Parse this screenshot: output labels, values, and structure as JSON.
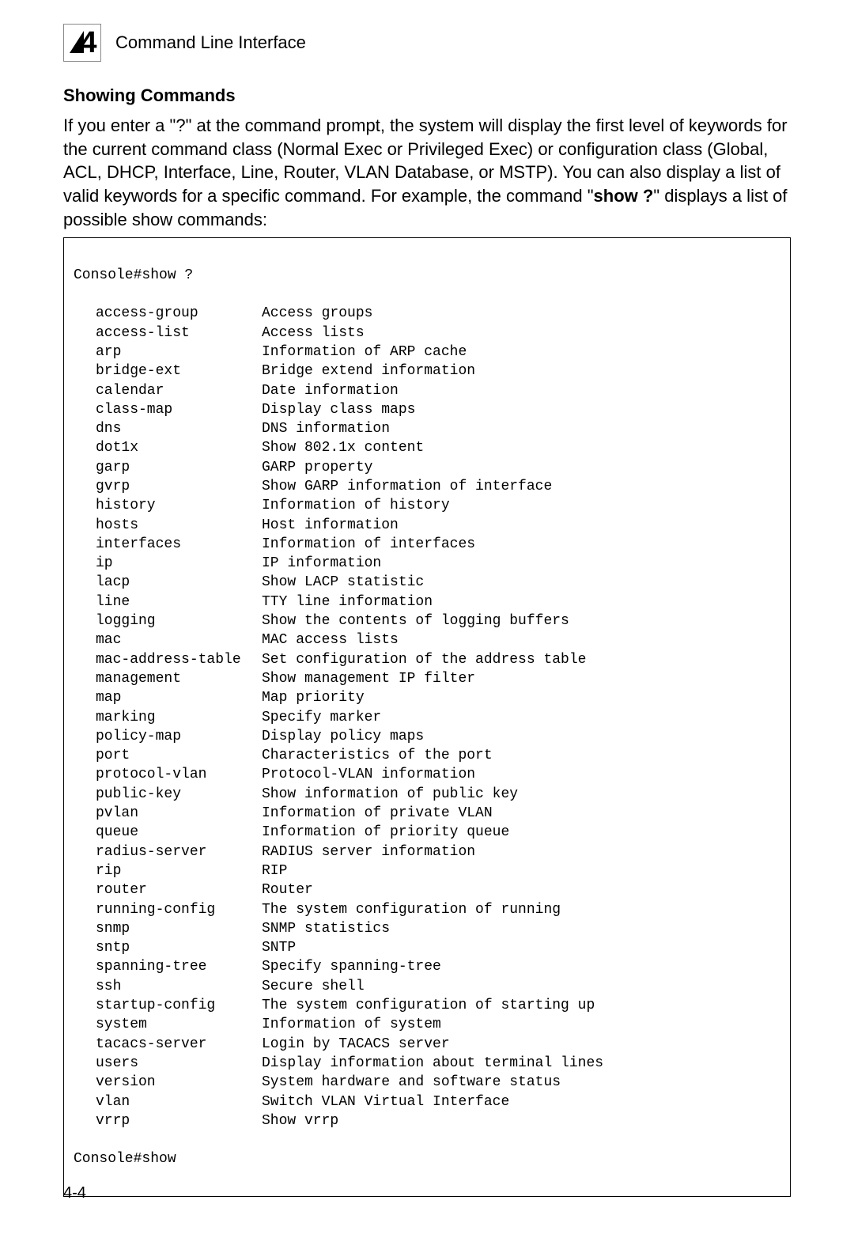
{
  "header": {
    "chapter_number": "4",
    "title": "Command Line Interface"
  },
  "section": {
    "heading": "Showing Commands",
    "paragraph_parts": {
      "p1": "If you enter a \"?\" at the command prompt, the system will display the first level of keywords for the current command class (Normal Exec or Privileged Exec) or configuration class (Global, ACL, DHCP, Interface, Line, Router, VLAN Database, or MSTP). You can also display a list of valid keywords for a specific command. For example, the command \"",
      "p1_bold": "show ?",
      "p1_tail": "\" displays a list of possible show commands:"
    }
  },
  "terminal": {
    "prompt_first": "Console#show ?",
    "prompt_last": "Console#show",
    "commands": [
      {
        "key": "access-group",
        "desc": "Access groups"
      },
      {
        "key": "access-list",
        "desc": "Access lists"
      },
      {
        "key": "arp",
        "desc": "Information of ARP cache"
      },
      {
        "key": "bridge-ext",
        "desc": "Bridge extend information"
      },
      {
        "key": "calendar",
        "desc": "Date information"
      },
      {
        "key": "class-map",
        "desc": "Display class maps"
      },
      {
        "key": "dns",
        "desc": "DNS information"
      },
      {
        "key": "dot1x",
        "desc": "Show 802.1x content"
      },
      {
        "key": "garp",
        "desc": "GARP property"
      },
      {
        "key": "gvrp",
        "desc": "Show GARP information of interface"
      },
      {
        "key": "history",
        "desc": "Information of history"
      },
      {
        "key": "hosts",
        "desc": "Host information"
      },
      {
        "key": "interfaces",
        "desc": "Information of interfaces"
      },
      {
        "key": "ip",
        "desc": "IP information"
      },
      {
        "key": "lacp",
        "desc": "Show LACP statistic"
      },
      {
        "key": "line",
        "desc": "TTY line information"
      },
      {
        "key": "logging",
        "desc": "Show the contents of logging buffers"
      },
      {
        "key": "mac",
        "desc": "MAC access lists"
      },
      {
        "key": "mac-address-table",
        "desc": "Set configuration of the address table"
      },
      {
        "key": "management",
        "desc": "Show management IP filter"
      },
      {
        "key": "map",
        "desc": "Map priority"
      },
      {
        "key": "marking",
        "desc": "Specify marker"
      },
      {
        "key": "policy-map",
        "desc": "Display policy maps"
      },
      {
        "key": "port",
        "desc": "Characteristics of the port"
      },
      {
        "key": "protocol-vlan",
        "desc": "Protocol-VLAN information"
      },
      {
        "key": "public-key",
        "desc": "Show information of public key"
      },
      {
        "key": "pvlan",
        "desc": "Information of private VLAN"
      },
      {
        "key": "queue",
        "desc": "Information of priority queue"
      },
      {
        "key": "radius-server",
        "desc": "RADIUS server information"
      },
      {
        "key": "rip",
        "desc": "RIP"
      },
      {
        "key": "router",
        "desc": "Router"
      },
      {
        "key": "running-config",
        "desc": "The system configuration of running"
      },
      {
        "key": "snmp",
        "desc": "SNMP statistics"
      },
      {
        "key": "sntp",
        "desc": "SNTP"
      },
      {
        "key": "spanning-tree",
        "desc": "Specify spanning-tree"
      },
      {
        "key": "ssh",
        "desc": "Secure shell"
      },
      {
        "key": "startup-config",
        "desc": "The system configuration of starting up"
      },
      {
        "key": "system",
        "desc": "Information of system"
      },
      {
        "key": "tacacs-server",
        "desc": "Login by TACACS server"
      },
      {
        "key": "users",
        "desc": "Display information about terminal lines"
      },
      {
        "key": "version",
        "desc": "System hardware and software status"
      },
      {
        "key": "vlan",
        "desc": "Switch VLAN Virtual Interface"
      },
      {
        "key": "vrrp",
        "desc": "Show vrrp"
      }
    ]
  },
  "footer": {
    "page_number": "4-4"
  }
}
